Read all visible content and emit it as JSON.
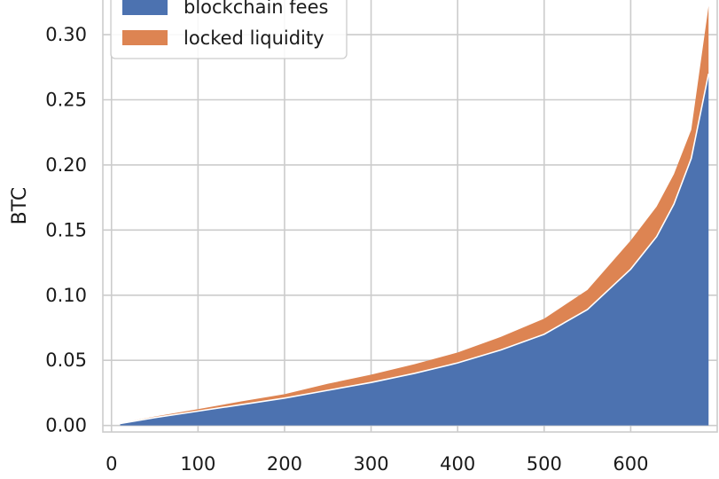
{
  "chart_data": {
    "type": "area",
    "stacked": true,
    "ylabel": "BTC",
    "xlim": [
      -10,
      700
    ],
    "ylim": [
      -0.005,
      0.33
    ],
    "xticks": [
      0,
      100,
      200,
      300,
      400,
      500,
      600
    ],
    "yticks": [
      0.0,
      0.05,
      0.1,
      0.15,
      0.2,
      0.25,
      0.3
    ],
    "ytick_labels": [
      "0.00",
      "0.05",
      "0.10",
      "0.15",
      "0.20",
      "0.25",
      "0.30"
    ],
    "grid": true,
    "legend_position": "top-left",
    "x": [
      10,
      50,
      100,
      150,
      200,
      250,
      300,
      350,
      400,
      450,
      500,
      550,
      600,
      630,
      650,
      670,
      690
    ],
    "series": [
      {
        "name": "blockchain fees",
        "color": "#4c72b0",
        "values": [
          0.0015,
          0.006,
          0.011,
          0.016,
          0.021,
          0.027,
          0.033,
          0.04,
          0.048,
          0.058,
          0.07,
          0.089,
          0.12,
          0.145,
          0.17,
          0.205,
          0.27
        ]
      },
      {
        "name": "locked liquidity",
        "color": "#dd8452",
        "values": [
          0.0003,
          0.0008,
          0.0015,
          0.0025,
          0.003,
          0.005,
          0.006,
          0.007,
          0.008,
          0.01,
          0.012,
          0.015,
          0.022,
          0.023,
          0.023,
          0.022,
          0.052
        ]
      }
    ]
  }
}
